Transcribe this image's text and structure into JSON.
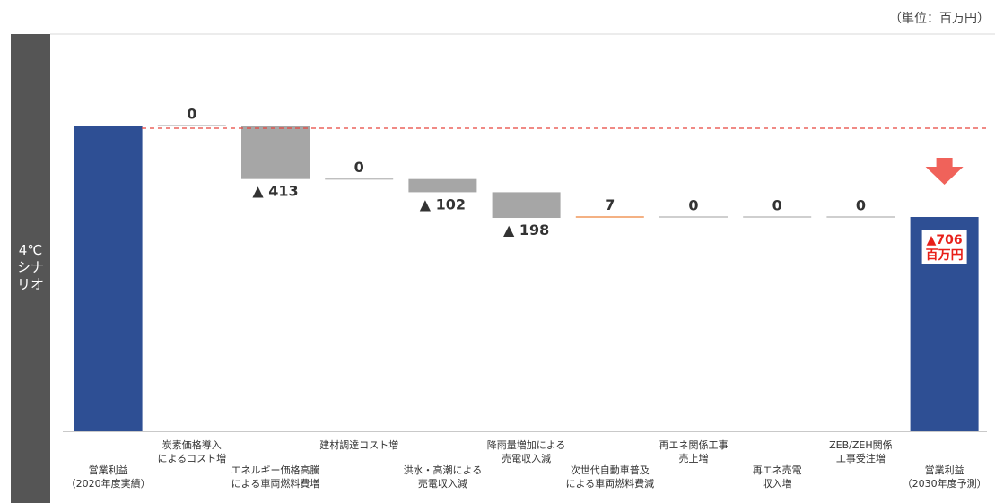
{
  "unit": "（単位：百万円）",
  "side_label": "4℃\nシナ\nリオ",
  "colors": {
    "bar_total": "#2e4f94",
    "bar_decrease": "#a6a6a6",
    "bar_increase": "#f4b183",
    "reference_line": "#e8453c"
  },
  "chart_data": {
    "type": "waterfall",
    "title": "",
    "ylabel": "",
    "categories": [
      "営業利益\n（2020年度実績）",
      "炭素価格導入\nによるコスト増",
      "エネルギー価格高騰\nによる車両燃料費増",
      "建材調達コスト増",
      "洪水・高潮による\n売電収入減",
      "降雨量増加による\n売電収入減",
      "次世代自動車普及\nによる車両燃料費減",
      "再エネ関係工事\n売上増",
      "再エネ売電\n収入増",
      "ZEB/ZEH関係\n工事受注増",
      "営業利益\n（2030年度予測）"
    ],
    "value_labels": [
      "",
      "0",
      "▲ 413",
      "0",
      "▲ 102",
      "▲ 198",
      "7",
      "0",
      "0",
      "0",
      ""
    ],
    "deltas": [
      null,
      0,
      -413,
      0,
      -102,
      -198,
      7,
      0,
      0,
      0,
      null
    ],
    "kinds": [
      "total",
      "delta",
      "delta",
      "delta",
      "delta",
      "delta",
      "delta",
      "delta",
      "delta",
      "delta",
      "total"
    ],
    "result": {
      "change_label": "▲706",
      "unit_label": "百万円",
      "change": -706
    },
    "baseline_reference_line": true
  }
}
